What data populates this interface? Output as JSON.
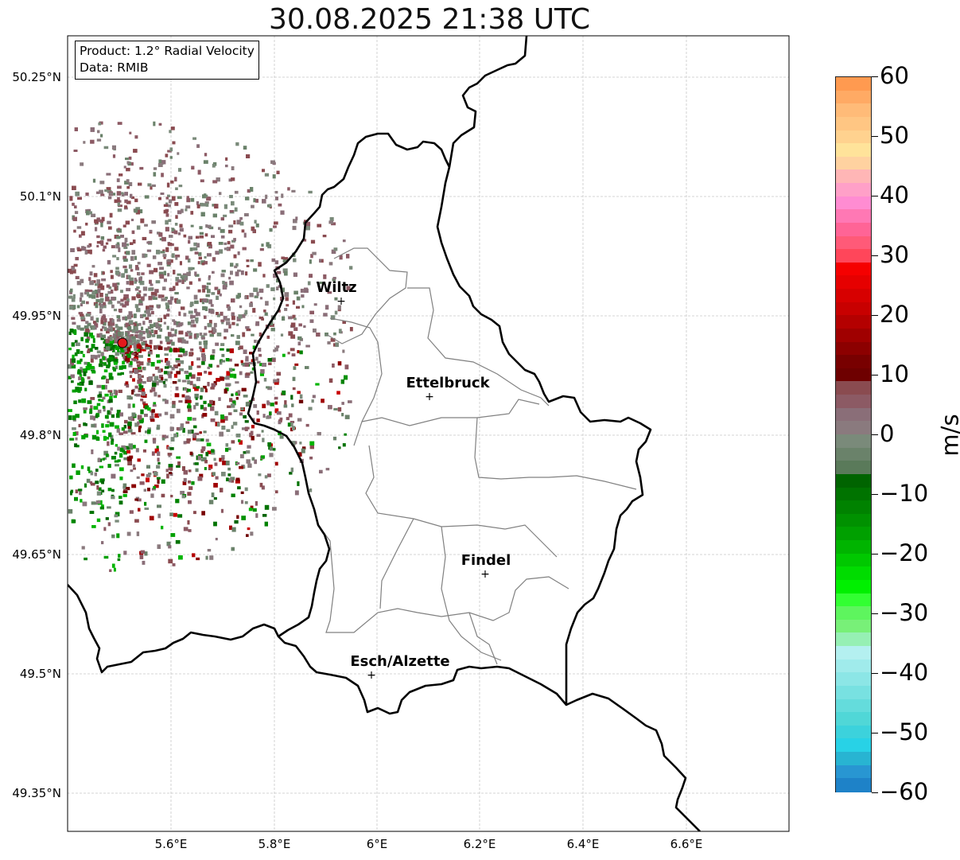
{
  "title": "30.08.2025 21:38 UTC",
  "info": {
    "product": "Product: 1.2° Radial Velocity",
    "data": "Data: RMIB"
  },
  "map": {
    "lat_ticks": [
      "50.25°N",
      "50.1°N",
      "49.95°N",
      "49.8°N",
      "49.65°N",
      "49.5°N",
      "49.35°N"
    ],
    "lon_ticks": [
      "5.6°E",
      "5.8°E",
      "6°E",
      "6.2°E",
      "6.4°E",
      "6.6°E"
    ],
    "cities": [
      {
        "name": "Wiltz"
      },
      {
        "name": "Ettelbruck"
      },
      {
        "name": "Findel"
      },
      {
        "name": "Esch/Alzette"
      }
    ],
    "radar_marker_color": "#e31a1c",
    "grid_color": "#c8c8c8",
    "border_color": "#000000",
    "canton_color": "#808080"
  },
  "colorbar": {
    "unit": "m/s",
    "ticks": [
      "60",
      "50",
      "40",
      "30",
      "20",
      "10",
      "0",
      "−10",
      "−20",
      "−30",
      "−40",
      "−50",
      "−60"
    ],
    "colors_top_to_bottom": [
      "#ff9a50",
      "#ffaa64",
      "#ffbb78",
      "#ffc683",
      "#ffd28f",
      "#ffe39a",
      "#ffd2a0",
      "#ffb6b6",
      "#ffa0c8",
      "#ff8cd2",
      "#ff78b4",
      "#ff6496",
      "#ff5a78",
      "#ff465a",
      "#f50000",
      "#e60000",
      "#d70000",
      "#c80000",
      "#b40000",
      "#a00000",
      "#8c0000",
      "#780000",
      "#6e0000",
      "#8a4b50",
      "#8c5a64",
      "#8a6e78",
      "#8a7a7e",
      "#7a8a7a",
      "#6a826a",
      "#5a7a5a",
      "#006400",
      "#007300",
      "#008200",
      "#009100",
      "#00a000",
      "#00b400",
      "#00c800",
      "#00dc00",
      "#00f000",
      "#32ff32",
      "#5ef55e",
      "#78f078",
      "#96f0b4",
      "#b4f0f0",
      "#a0ebeb",
      "#8ce6e6",
      "#78e1e1",
      "#64dcdc",
      "#50d7d7",
      "#3cd2dc",
      "#28d2e6",
      "#28b4d2",
      "#2896d2",
      "#1e82c8"
    ]
  }
}
